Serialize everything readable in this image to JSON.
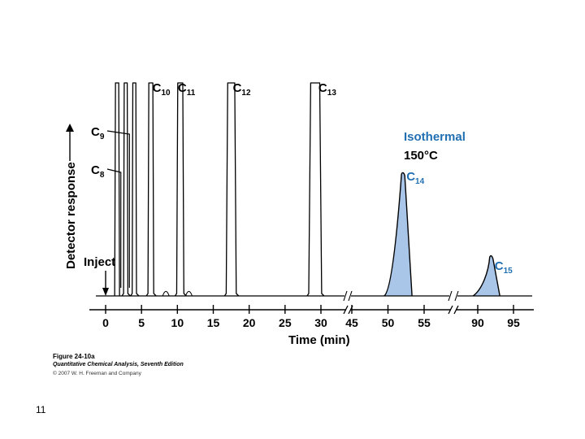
{
  "chart_data": {
    "type": "line",
    "title": "",
    "xlabel": "Time (min)",
    "ylabel": "Detector response",
    "ylim": [
      0,
      1
    ],
    "axis_segments": [
      {
        "ticks": [
          0,
          5,
          10,
          15,
          20,
          25,
          30
        ]
      },
      {
        "ticks": [
          45,
          50,
          55
        ]
      },
      {
        "ticks": [
          90,
          95
        ]
      }
    ],
    "x_ticks": [
      "0",
      "5",
      "10",
      "15",
      "20",
      "25",
      "30",
      "45",
      "50",
      "55",
      "90",
      "95"
    ],
    "peaks": [
      {
        "name": "C",
        "sub": "8",
        "retention_min": 2.8,
        "height": 1.0,
        "width_min": 0.6,
        "arrow": true
      },
      {
        "name": "C",
        "sub": "9",
        "retention_min": 4.0,
        "height": 1.0,
        "width_min": 0.6,
        "arrow": true
      },
      {
        "name": "C",
        "sub": "10",
        "retention_min": 6.3,
        "height": 1.0,
        "width_min": 0.8
      },
      {
        "name": "C",
        "sub": "11",
        "retention_min": 10.4,
        "height": 1.0,
        "width_min": 1.0
      },
      {
        "name": "C",
        "sub": "12",
        "retention_min": 17.5,
        "height": 1.0,
        "width_min": 1.4
      },
      {
        "name": "C",
        "sub": "13",
        "retention_min": 29.2,
        "height": 1.0,
        "width_min": 1.8
      },
      {
        "name": "C",
        "sub": "14",
        "retention_min": 52.1,
        "height": 0.58,
        "width_min": 3.5,
        "shaded": true
      },
      {
        "name": "C",
        "sub": "15",
        "retention_min": 91.9,
        "height": 0.19,
        "width_min": 3.4,
        "shaded": true
      }
    ],
    "minor_peaks": [
      {
        "retention_min": 1.6,
        "height": 1.0
      },
      {
        "retention_min": 8.4,
        "height": 0.02
      },
      {
        "retention_min": 11.6,
        "height": 0.02
      }
    ],
    "annotations": {
      "inject": "Inject",
      "isothermal": "Isothermal",
      "temperature": "150°C"
    },
    "colors": {
      "line": "#000000",
      "fill": "#a9c6e8",
      "accent": "#1f6fb2"
    }
  },
  "caption": {
    "title": "Figure 24-10a",
    "book": "Quantitative Chemical Analysis, Seventh Edition",
    "copyright": "© 2007 W. H. Freeman and Company"
  },
  "slide_number": "11"
}
